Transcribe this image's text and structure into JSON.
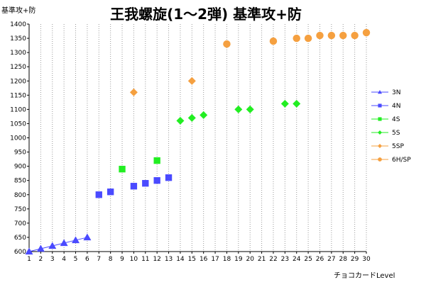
{
  "chart_data": {
    "type": "scatter",
    "title": "王我螺旋(1～2弾) 基準攻+防",
    "ylabel": "基準攻+防",
    "xlabel": "チョコカードLevel",
    "xlim": [
      1,
      30
    ],
    "ylim": [
      600,
      1400
    ],
    "x_ticks": [
      1,
      2,
      3,
      4,
      5,
      6,
      7,
      8,
      9,
      10,
      11,
      12,
      13,
      14,
      15,
      16,
      17,
      18,
      19,
      20,
      21,
      22,
      23,
      24,
      25,
      26,
      27,
      28,
      29,
      30
    ],
    "y_ticks": [
      600,
      650,
      700,
      750,
      800,
      850,
      900,
      950,
      1000,
      1050,
      1100,
      1150,
      1200,
      1250,
      1300,
      1350,
      1400
    ],
    "grid": "vertical-dotted",
    "legend_position": "right",
    "series": [
      {
        "name": "3N",
        "color": "#4a4aff",
        "marker": "triangle",
        "line": true,
        "points": [
          [
            1,
            600
          ],
          [
            2,
            610
          ],
          [
            3,
            620
          ],
          [
            4,
            630
          ],
          [
            5,
            640
          ],
          [
            6,
            650
          ]
        ]
      },
      {
        "name": "4N",
        "color": "#4a4aff",
        "marker": "square",
        "line": false,
        "points": [
          [
            7,
            800
          ],
          [
            8,
            810
          ],
          [
            10,
            830
          ],
          [
            11,
            840
          ],
          [
            12,
            850
          ],
          [
            13,
            860
          ]
        ]
      },
      {
        "name": "4S",
        "color": "#22ee22",
        "marker": "square",
        "line": false,
        "points": [
          [
            9,
            890
          ],
          [
            12,
            920
          ]
        ]
      },
      {
        "name": "5S",
        "color": "#22ee22",
        "marker": "diamond",
        "line": false,
        "points": [
          [
            14,
            1060
          ],
          [
            15,
            1070
          ],
          [
            16,
            1080
          ],
          [
            19,
            1100
          ],
          [
            20,
            1100
          ],
          [
            23,
            1120
          ],
          [
            24,
            1120
          ]
        ]
      },
      {
        "name": "5SP",
        "color": "#f5a040",
        "marker": "diamond",
        "line": false,
        "points": [
          [
            10,
            1160
          ],
          [
            15,
            1200
          ]
        ]
      },
      {
        "name": "6H/SP",
        "color": "#f5a040",
        "marker": "circle",
        "line": false,
        "points": [
          [
            18,
            1330
          ],
          [
            22,
            1340
          ],
          [
            24,
            1350
          ],
          [
            25,
            1350
          ],
          [
            26,
            1360
          ],
          [
            27,
            1360
          ],
          [
            28,
            1360
          ],
          [
            29,
            1360
          ],
          [
            30,
            1370
          ]
        ]
      }
    ]
  }
}
